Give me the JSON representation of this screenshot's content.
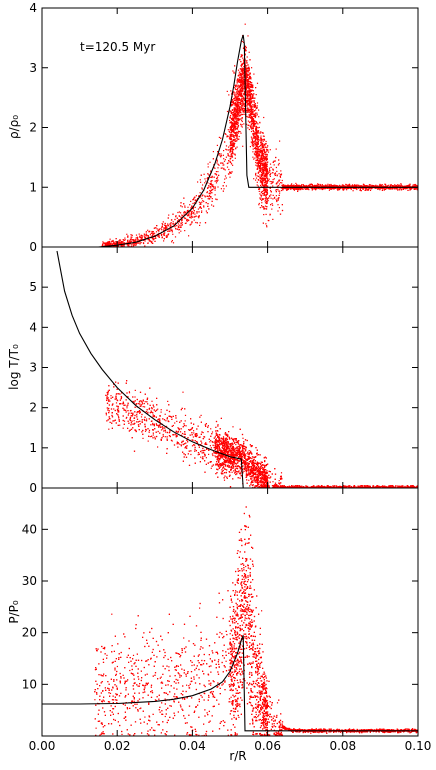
{
  "chart_data": {
    "type": "scatter",
    "annotation": "t=120.5 Myr",
    "xlabel": "r/R",
    "xlim": [
      0.0,
      0.1
    ],
    "xticks": [
      "0.00",
      "0.02",
      "0.04",
      "0.06",
      "0.08",
      "0.10"
    ],
    "shared_x": true,
    "colors": {
      "scatter": "#ff0000",
      "line": "#000000",
      "axes": "#000000"
    },
    "panels": [
      {
        "id": "density",
        "ylabel": "ρ/ρ₀",
        "ylim": [
          0,
          4
        ],
        "yticks": [
          "0",
          "1",
          "2",
          "3",
          "4"
        ],
        "series": [
          {
            "kind": "scatter",
            "points_x": [
              0.015,
              0.02,
              0.025,
              0.03,
              0.035,
              0.04,
              0.044,
              0.048,
              0.05,
              0.052,
              0.053,
              0.054,
              0.055,
              0.056,
              0.057,
              0.058,
              0.06,
              0.062,
              0.065,
              0.07,
              0.08,
              0.09,
              0.1
            ],
            "points_y": [
              0.02,
              0.05,
              0.1,
              0.2,
              0.35,
              0.6,
              0.9,
              1.4,
              1.8,
              2.3,
              2.7,
              2.8,
              2.6,
              2.2,
              1.8,
              1.4,
              1.1,
              1.02,
              1.0,
              1.0,
              1.0,
              1.0,
              1.0
            ]
          },
          {
            "kind": "line",
            "x": [
              0.005,
              0.015,
              0.02,
              0.025,
              0.03,
              0.035,
              0.04,
              0.043,
              0.046,
              0.048,
              0.05,
              0.051,
              0.052,
              0.053,
              0.0535,
              0.0538,
              0.0545,
              0.055,
              0.056,
              0.06,
              0.07,
              0.08,
              0.09,
              0.1
            ],
            "y": [
              0,
              0,
              0.03,
              0.08,
              0.18,
              0.35,
              0.65,
              0.95,
              1.4,
              1.8,
              2.35,
              2.7,
              3.1,
              3.45,
              3.55,
              3.4,
              1.2,
              1.0,
              1.0,
              1.0,
              1.0,
              1.0,
              1.0,
              1.0
            ]
          }
        ]
      },
      {
        "id": "temperature",
        "ylabel": "log T/T₀",
        "ylim": [
          0,
          6
        ],
        "yticks": [
          "0",
          "1",
          "2",
          "3",
          "4",
          "5"
        ],
        "series": [
          {
            "kind": "scatter",
            "points_x": [
              0.017,
              0.02,
              0.025,
              0.03,
              0.035,
              0.04,
              0.045,
              0.05,
              0.053,
              0.055,
              0.057,
              0.059,
              0.061,
              0.063,
              0.066,
              0.07,
              0.08,
              0.09,
              0.1
            ],
            "points_y": [
              2.1,
              2.0,
              1.85,
              1.65,
              1.45,
              1.2,
              1.0,
              0.85,
              0.75,
              0.6,
              0.35,
              0.18,
              0.08,
              0.03,
              0.01,
              0.0,
              0.0,
              0.0,
              0.0
            ]
          },
          {
            "kind": "line",
            "x": [
              0.004,
              0.006,
              0.008,
              0.01,
              0.013,
              0.016,
              0.02,
              0.025,
              0.03,
              0.035,
              0.04,
              0.045,
              0.05,
              0.053,
              0.0535,
              0.054,
              0.07,
              0.1
            ],
            "y": [
              5.9,
              4.9,
              4.3,
              3.85,
              3.35,
              2.95,
              2.5,
              2.05,
              1.7,
              1.4,
              1.15,
              0.95,
              0.78,
              0.72,
              0.0,
              0.0,
              0.0,
              0.0
            ]
          }
        ]
      },
      {
        "id": "pressure",
        "ylabel": "P/P₀",
        "ylim": [
          0,
          48
        ],
        "yticks": [
          "10",
          "20",
          "30",
          "40"
        ],
        "series": [
          {
            "kind": "scatter",
            "points_x": [
              0.015,
              0.02,
              0.025,
              0.03,
              0.035,
              0.04,
              0.045,
              0.05,
              0.052,
              0.053,
              0.054,
              0.055,
              0.056,
              0.058,
              0.06,
              0.063,
              0.066,
              0.07,
              0.08,
              0.09,
              0.1
            ],
            "points_y": [
              8,
              9,
              9,
              9,
              10,
              10,
              11,
              13,
              16,
              20,
              24,
              22,
              15,
              8,
              4,
              2,
              1.2,
              1.0,
              1.0,
              1.0,
              1.0
            ]
          },
          {
            "kind": "line",
            "x": [
              0.0,
              0.01,
              0.02,
              0.03,
              0.035,
              0.04,
              0.045,
              0.048,
              0.05,
              0.052,
              0.053,
              0.0535,
              0.054,
              0.055,
              0.06,
              0.07,
              0.08,
              0.09,
              0.1
            ],
            "y": [
              6.2,
              6.2,
              6.3,
              6.7,
              7.1,
              7.8,
              9.1,
              10.5,
              12.5,
              16,
              18.5,
              19.5,
              1.0,
              1.0,
              1.0,
              1.0,
              1.0,
              1.0,
              1.0
            ]
          }
        ]
      }
    ]
  }
}
